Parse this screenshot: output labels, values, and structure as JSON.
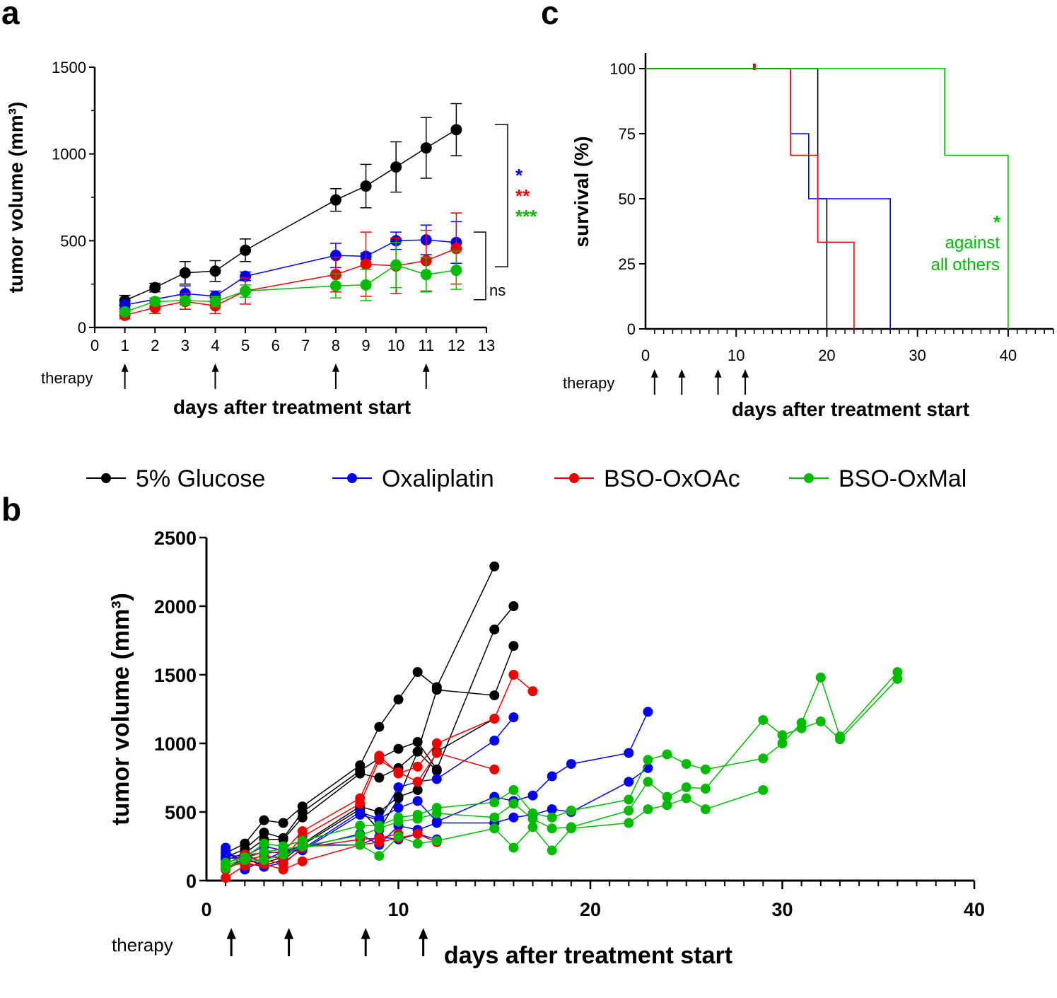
{
  "figure": {
    "legend": {
      "entries": [
        {
          "label": "5% Glucose",
          "color": "#000000"
        },
        {
          "label": "Oxaliplatin",
          "color": "#0000ee"
        },
        {
          "label": "BSO-OxOAc",
          "color": "#ee0000"
        },
        {
          "label": "BSO-OxMal",
          "color": "#00bb00"
        }
      ]
    }
  },
  "chart_data": [
    {
      "panel": "a",
      "type": "line",
      "ylabel": "tumor volume (mm³)",
      "xlabel": "days after treatment start",
      "xlim": [
        0,
        13
      ],
      "ylim": [
        0,
        1500
      ],
      "xticks": [
        0,
        1,
        2,
        3,
        4,
        5,
        6,
        7,
        8,
        9,
        10,
        11,
        12,
        13
      ],
      "yticks": [
        0,
        500,
        1000,
        1500
      ],
      "therapy_label": "therapy",
      "therapy_days": [
        1,
        4,
        8,
        11
      ],
      "significance": [
        {
          "text": "*",
          "color": "#0000ee"
        },
        {
          "text": "**",
          "color": "#ee0000"
        },
        {
          "text": "***",
          "color": "#00bb00"
        },
        {
          "text": "ns",
          "color": "#000000"
        }
      ],
      "series": [
        {
          "name": "5% Glucose",
          "color": "#000000",
          "x": [
            1,
            2,
            3,
            4,
            5,
            8,
            9,
            10,
            11,
            12
          ],
          "y": [
            155,
            230,
            315,
            325,
            445,
            735,
            815,
            925,
            1035,
            1140
          ],
          "err": [
            30,
            25,
            65,
            60,
            65,
            65,
            125,
            145,
            175,
            150
          ]
        },
        {
          "name": "Oxaliplatin",
          "color": "#0000ee",
          "x": [
            1,
            3,
            4,
            5,
            8,
            9,
            10,
            11,
            12
          ],
          "y": [
            130,
            195,
            180,
            295,
            415,
            410,
            500,
            505,
            490
          ],
          "err": [
            20,
            45,
            30,
            25,
            70,
            20,
            50,
            85,
            120
          ]
        },
        {
          "name": "BSO-OxOAc",
          "color": "#ee0000",
          "x": [
            1,
            2,
            3,
            4,
            5,
            8,
            9,
            10,
            11,
            12
          ],
          "y": [
            70,
            115,
            150,
            125,
            210,
            305,
            365,
            355,
            385,
            455
          ],
          "err": [
            20,
            35,
            45,
            45,
            75,
            100,
            185,
            160,
            175,
            205
          ]
        },
        {
          "name": "BSO-OxMal",
          "color": "#00bb00",
          "x": [
            1,
            2,
            3,
            4,
            5,
            8,
            9,
            10,
            11,
            12
          ],
          "y": [
            90,
            150,
            155,
            150,
            210,
            240,
            245,
            360,
            305,
            330
          ],
          "err": [
            15,
            20,
            25,
            30,
            35,
            70,
            90,
            130,
            100,
            110
          ]
        }
      ]
    },
    {
      "panel": "b",
      "type": "line",
      "ylabel": "tumor volume (mm³)",
      "xlabel": "days after treatment start",
      "xlim": [
        0,
        40
      ],
      "ylim": [
        0,
        2500
      ],
      "xticks": [
        0,
        10,
        20,
        30,
        40
      ],
      "yticks": [
        0,
        500,
        1000,
        1500,
        2000,
        2500
      ],
      "therapy_label": "therapy",
      "therapy_days": [
        1,
        4,
        8,
        11
      ],
      "series": [
        {
          "name": "5% Glucose",
          "color": "#000000",
          "x": [
            1,
            2,
            3,
            4,
            5,
            8,
            9,
            10,
            11,
            12,
            15
          ],
          "y": [
            200,
            270,
            440,
            420,
            540,
            840,
            1120,
            1320,
            1520,
            1410,
            2290
          ]
        },
        {
          "name": "5% Glucose",
          "color": "#000000",
          "x": [
            1,
            2,
            3,
            4,
            5,
            8,
            9,
            10,
            11,
            12,
            15,
            16
          ],
          "y": [
            170,
            230,
            350,
            310,
            500,
            800,
            890,
            960,
            1010,
            810,
            1830,
            2000
          ]
        },
        {
          "name": "5% Glucose",
          "color": "#000000",
          "x": [
            1,
            2,
            3,
            4,
            5,
            8,
            9,
            10,
            11,
            12,
            15,
            16
          ],
          "y": [
            150,
            200,
            300,
            300,
            460,
            780,
            750,
            820,
            940,
            1390,
            1350,
            1710
          ]
        },
        {
          "name": "5% Glucose",
          "color": "#000000",
          "x": [
            1,
            2,
            3,
            4,
            5,
            8,
            9,
            10,
            11,
            12,
            15
          ],
          "y": [
            120,
            190,
            130,
            170,
            270,
            540,
            500,
            610,
            660,
            940,
            1180
          ]
        },
        {
          "name": "5% Glucose",
          "color": "#000000",
          "x": [
            1,
            2,
            3,
            4,
            5,
            8,
            9,
            10,
            11,
            12
          ],
          "y": [
            90,
            160,
            110,
            150,
            260,
            520,
            370,
            600,
            940,
            800
          ]
        },
        {
          "name": "Oxaliplatin",
          "color": "#0000ee",
          "x": [
            1,
            2,
            3,
            4,
            5,
            8,
            9,
            10,
            11,
            12,
            15,
            16
          ],
          "y": [
            240,
            80,
            150,
            210,
            220,
            480,
            440,
            680,
            720,
            740,
            1020,
            1190
          ]
        },
        {
          "name": "Oxaliplatin",
          "color": "#0000ee",
          "x": [
            1,
            2,
            3,
            4,
            5,
            8,
            9,
            10,
            11,
            12,
            15,
            16,
            17,
            18,
            19,
            22,
            23
          ],
          "y": [
            220,
            130,
            100,
            130,
            230,
            500,
            450,
            530,
            580,
            430,
            610,
            580,
            620,
            760,
            850,
            930,
            1230
          ]
        },
        {
          "name": "Oxaliplatin",
          "color": "#0000ee",
          "x": [
            1,
            2,
            3,
            4,
            5,
            8,
            9,
            10,
            11,
            12,
            15,
            16,
            17,
            18,
            19,
            22,
            23
          ],
          "y": [
            180,
            180,
            250,
            220,
            240,
            340,
            260,
            400,
            370,
            420,
            420,
            460,
            480,
            520,
            500,
            720,
            820
          ]
        },
        {
          "name": "Oxaliplatin",
          "color": "#0000ee",
          "x": [
            1,
            2,
            3,
            4,
            5,
            8,
            9,
            10,
            11,
            12
          ],
          "y": [
            160,
            170,
            210,
            200,
            260,
            260,
            320,
            300,
            340,
            300
          ]
        },
        {
          "name": "BSO-OxOAc",
          "color": "#ee0000",
          "x": [
            1,
            2,
            3,
            4,
            5,
            8,
            9,
            10,
            11,
            12,
            15,
            16,
            17
          ],
          "y": [
            120,
            190,
            200,
            210,
            360,
            600,
            910,
            780,
            830,
            1000,
            1180,
            1500,
            1380
          ]
        },
        {
          "name": "BSO-OxOAc",
          "color": "#ee0000",
          "x": [
            1,
            2,
            3,
            4,
            5,
            8,
            9,
            10,
            11,
            12,
            15
          ],
          "y": [
            80,
            150,
            180,
            160,
            320,
            560,
            880,
            790,
            720,
            930,
            810
          ]
        },
        {
          "name": "BSO-OxOAc",
          "color": "#ee0000",
          "x": [
            1,
            2,
            3,
            4,
            5,
            8,
            9,
            10
          ],
          "y": [
            100,
            130,
            150,
            120,
            240,
            300,
            310,
            340
          ]
        },
        {
          "name": "BSO-OxOAc",
          "color": "#ee0000",
          "x": [
            1,
            2,
            3,
            4,
            5,
            8,
            9,
            10,
            11,
            12
          ],
          "y": [
            20,
            110,
            120,
            80,
            140,
            260,
            280,
            310,
            340,
            280
          ]
        },
        {
          "name": "BSO-OxMal",
          "color": "#00bb00",
          "x": [
            1,
            2,
            3,
            4,
            5,
            8,
            9,
            10,
            11,
            12,
            15,
            16,
            17,
            18,
            19,
            22,
            23,
            24,
            25,
            26,
            29,
            30,
            31,
            32,
            33,
            36
          ],
          "y": [
            130,
            170,
            270,
            250,
            290,
            400,
            400,
            460,
            480,
            530,
            570,
            660,
            490,
            460,
            510,
            590,
            880,
            920,
            850,
            810,
            890,
            1000,
            1150,
            1480,
            1050,
            1520
          ]
        },
        {
          "name": "BSO-OxMal",
          "color": "#00bb00",
          "x": [
            1,
            2,
            3,
            4,
            5,
            8,
            9,
            10,
            11,
            12,
            15,
            16,
            17,
            18,
            19,
            22,
            23,
            24,
            25,
            26,
            29,
            30,
            31,
            32,
            33,
            36
          ],
          "y": [
            110,
            160,
            210,
            230,
            250,
            330,
            380,
            430,
            450,
            490,
            460,
            560,
            450,
            380,
            390,
            510,
            720,
            610,
            680,
            670,
            1170,
            1060,
            1110,
            1160,
            1030,
            1470
          ]
        },
        {
          "name": "BSO-OxMal",
          "color": "#00bb00",
          "x": [
            1,
            2,
            3,
            4,
            5,
            8,
            9,
            10,
            11,
            12,
            15,
            16,
            17,
            18,
            19,
            22,
            23,
            24,
            25,
            26,
            29
          ],
          "y": [
            90,
            150,
            150,
            190,
            250,
            260,
            180,
            320,
            270,
            290,
            380,
            240,
            390,
            220,
            380,
            420,
            520,
            550,
            600,
            520,
            660
          ]
        }
      ]
    },
    {
      "panel": "c",
      "type": "line",
      "ylabel": "survival (%)",
      "xlabel": "days after treatment start",
      "xlim": [
        0,
        45
      ],
      "ylim": [
        0,
        100
      ],
      "xticks": [
        0,
        10,
        20,
        30,
        40
      ],
      "yticks": [
        0,
        25,
        50,
        75,
        100
      ],
      "therapy_label": "therapy",
      "therapy_days": [
        1,
        4,
        8,
        11
      ],
      "annotation": {
        "star": "*",
        "line1": "against",
        "line2": "all others",
        "color": "#00bb00"
      },
      "series": [
        {
          "name": "5% Glucose",
          "color": "#000000",
          "steps": [
            [
              0,
              100
            ],
            [
              19,
              100
            ],
            [
              19,
              50
            ],
            [
              20,
              50
            ],
            [
              20,
              0
            ]
          ]
        },
        {
          "name": "Oxaliplatin",
          "color": "#0000ee",
          "steps": [
            [
              0,
              100
            ],
            [
              16,
              100
            ],
            [
              16,
              75
            ],
            [
              18,
              75
            ],
            [
              18,
              50
            ],
            [
              27,
              50
            ],
            [
              27,
              0
            ]
          ]
        },
        {
          "name": "BSO-OxOAc",
          "color": "#ee0000",
          "steps": [
            [
              0,
              100
            ],
            [
              16,
              100
            ],
            [
              16,
              66.7
            ],
            [
              19,
              66.7
            ],
            [
              19,
              33.3
            ],
            [
              23,
              33.3
            ],
            [
              23,
              0
            ]
          ],
          "censor": [
            [
              12,
              100
            ]
          ]
        },
        {
          "name": "BSO-OxMal",
          "color": "#00bb00",
          "steps": [
            [
              0,
              100
            ],
            [
              33,
              100
            ],
            [
              33,
              66.7
            ],
            [
              40,
              66.7
            ],
            [
              40,
              0
            ]
          ]
        }
      ]
    }
  ],
  "panel_letters": [
    "a",
    "b",
    "c"
  ]
}
